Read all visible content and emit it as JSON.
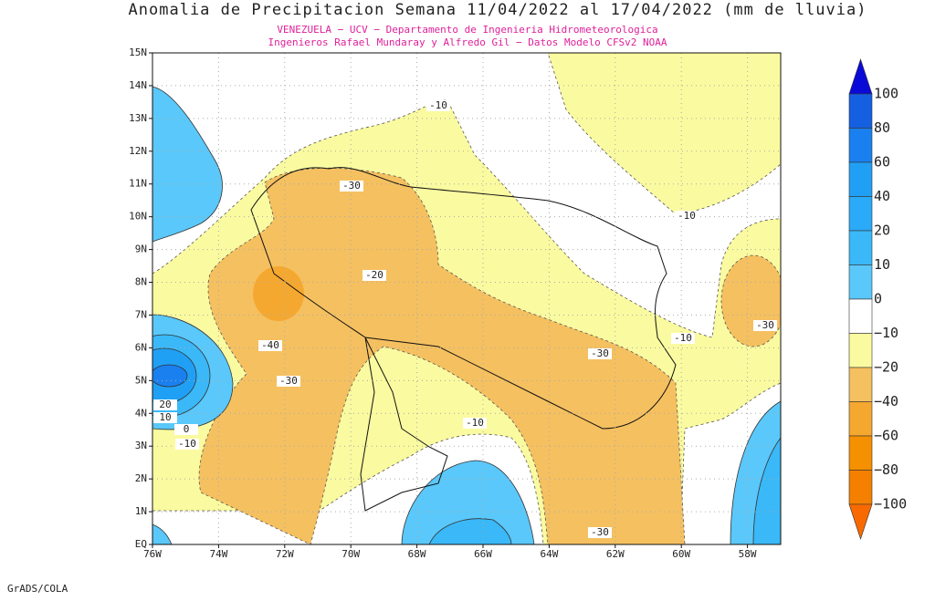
{
  "title": "Anomalia de Precipitacion Semana 11/04/2022 al 17/04/2022 (mm de lluvia)",
  "subtitle_lines": [
    "VENEZUELA − UCV − Departamento de Ingenieria Hidrometeorologica",
    "Ingenieros Rafael Mundaray y Alfredo Gil − Datos Modelo CFSv2 NOAA"
  ],
  "map": {
    "lat_labels": [
      "EQ",
      "1N",
      "2N",
      "3N",
      "4N",
      "5N",
      "6N",
      "7N",
      "8N",
      "9N",
      "10N",
      "11N",
      "12N",
      "13N",
      "14N",
      "15N"
    ],
    "lon_labels": [
      "76W",
      "74W",
      "72W",
      "70W",
      "68W",
      "66W",
      "64W",
      "62W",
      "60W",
      "58W"
    ],
    "contour_labels": [
      "-10",
      "-30",
      "-10",
      "-20",
      "-30",
      "-10",
      "-40",
      "-30",
      "-30",
      "20",
      "10",
      "0",
      "-10",
      "-10",
      "-30"
    ]
  },
  "colorbar": {
    "labels": [
      "100",
      "80",
      "60",
      "40",
      "20",
      "10",
      "0",
      "−10",
      "−20",
      "−40",
      "−60",
      "−80",
      "−100"
    ]
  },
  "footer": "GrADS/COLA"
}
